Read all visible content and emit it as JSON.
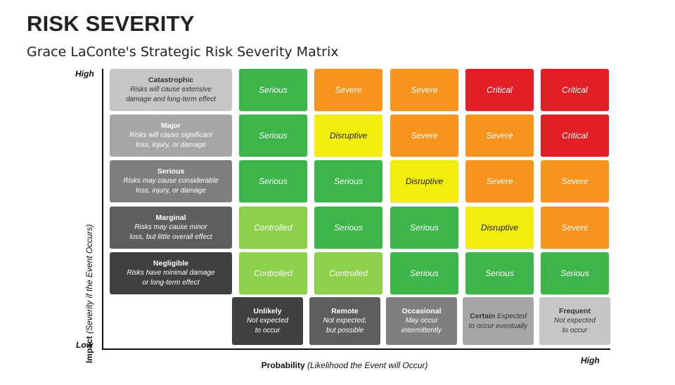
{
  "title": "RISK SEVERITY",
  "subtitle": "Grace LaConte's Strategic Risk Severity Matrix",
  "y_axis": {
    "label_bold": "Impact",
    "label_italic": "(Severity if the Event Occurs)",
    "high": "High",
    "low": "Low"
  },
  "x_axis": {
    "label_bold": "Probability",
    "label_italic": "(Likelihood the Event will Occur)",
    "high": "High"
  },
  "colors": {
    "Serious": "#3db54a",
    "Controlled": "#8dd04b",
    "Severe": "#f7941d",
    "Disruptive": "#f2ec0f",
    "Critical": "#e21f26"
  },
  "impacts": [
    {
      "name": "Catastrophic",
      "line1": "Risks will cause extensive",
      "line2": "damage and long-term effect",
      "bg": "#c6c6c6",
      "fg": "#333333"
    },
    {
      "name": "Major",
      "line1": "Risks will cause significant",
      "line2": "loss, injury, or damage",
      "bg": "#a6a6a6",
      "fg": "#ffffff"
    },
    {
      "name": "Serious",
      "line1": "Risks may cause considerable",
      "line2": "loss, injury, or damage",
      "bg": "#7f7f7f",
      "fg": "#ffffff"
    },
    {
      "name": "Marginal",
      "line1": "Risks may cause minor",
      "line2": "loss, but little overall effect",
      "bg": "#5e5e5e",
      "fg": "#ffffff"
    },
    {
      "name": "Negligible",
      "line1": "Risks have minimal damage",
      "line2": "or long-term effect",
      "bg": "#404040",
      "fg": "#ffffff"
    }
  ],
  "likelihoods": [
    {
      "name": "Unlikely",
      "line1": "Not expected",
      "line2": "to occur",
      "bg": "#404040",
      "fg": "#ffffff"
    },
    {
      "name": "Remote",
      "line1": "Not expected,",
      "line2": "but possible",
      "bg": "#5e5e5e",
      "fg": "#ffffff"
    },
    {
      "name": "Occasional",
      "line1": "May occur",
      "line2": "intermittently",
      "bg": "#7f7f7f",
      "fg": "#ffffff"
    },
    {
      "name": "Certain",
      "line1": "Expected",
      "line2": "to occur eventually",
      "bg": "#a6a6a6",
      "fg": "#333333",
      "inline": true
    },
    {
      "name": "Frequent",
      "line1": "Not expected",
      "line2": "to occur",
      "bg": "#c6c6c6",
      "fg": "#333333"
    }
  ],
  "matrix": [
    [
      "Serious",
      "Severe",
      "Severe",
      "Critical",
      "Critical"
    ],
    [
      "Serious",
      "Disruptive",
      "Severe",
      "Severe",
      "Critical"
    ],
    [
      "Serious",
      "Serious",
      "Disruptive",
      "Severe",
      "Severe"
    ],
    [
      "Controlled",
      "Serious",
      "Serious",
      "Disruptive",
      "Severe"
    ],
    [
      "Controlled",
      "Controlled",
      "Serious",
      "Serious",
      "Serious"
    ]
  ]
}
